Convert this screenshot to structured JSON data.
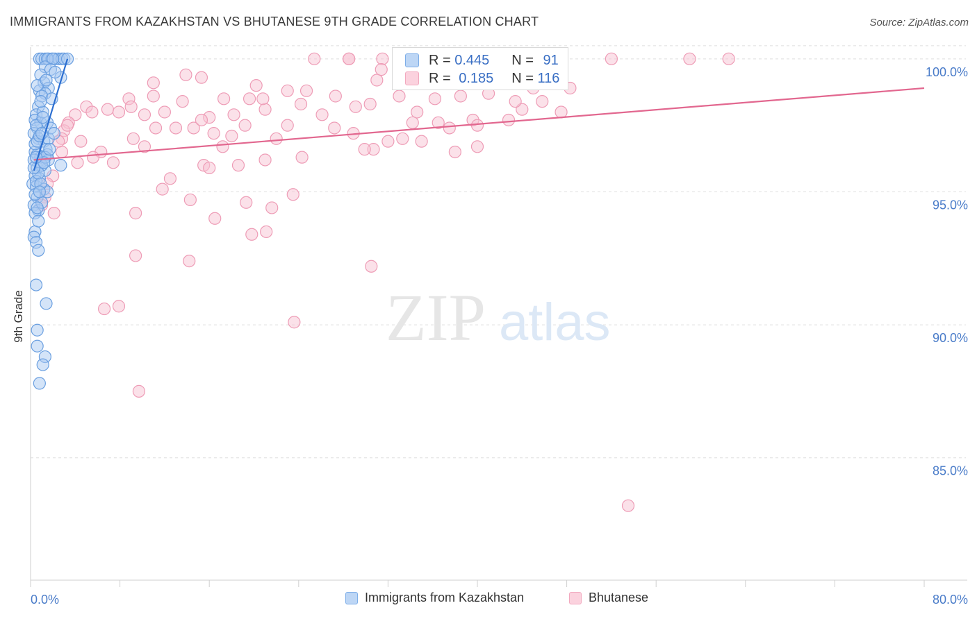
{
  "header": {
    "title": "IMMIGRANTS FROM KAZAKHSTAN VS BHUTANESE 9TH GRADE CORRELATION CHART",
    "source": "Source: ZipAtlas.com"
  },
  "watermark": {
    "zip": "ZIP",
    "atlas": "atlas"
  },
  "stats_box": {
    "rows": [
      {
        "r_label": "R =",
        "r_value": "0.445",
        "n_label": "N =",
        "n_value": "91",
        "color": "#7eaee8"
      },
      {
        "r_label": "R =",
        "r_value": "0.185",
        "n_label": "N =",
        "n_value": "116",
        "color": "#f2a9bf"
      }
    ]
  },
  "legend": {
    "items": [
      {
        "label": "Immigrants from Kazakhstan",
        "color": "#7eaee8"
      },
      {
        "label": "Bhutanese",
        "color": "#f2a9bf"
      }
    ]
  },
  "colors": {
    "blue_fill": "#a9c9f1",
    "blue_stroke": "#6a9fe0",
    "blue_line": "#2c6fd1",
    "pink_fill": "#f7c4d3",
    "pink_stroke": "#ee9cb6",
    "pink_line": "#e2678f",
    "axis_text": "#4a7cc9",
    "grid": "#dedede"
  },
  "chart_data": {
    "type": "scatter",
    "title": "IMMIGRANTS FROM KAZAKHSTAN VS BHUTANESE 9TH GRADE CORRELATION CHART",
    "xlabel": "",
    "ylabel": "9th Grade",
    "xlim": [
      0,
      80
    ],
    "ylim": [
      80.4,
      100.7
    ],
    "x_tick_labels": [
      "0.0%",
      "80.0%"
    ],
    "y_ticks": [
      {
        "value": 100,
        "label": "100.0%"
      },
      {
        "value": 95,
        "label": "95.0%"
      },
      {
        "value": 90,
        "label": "90.0%"
      },
      {
        "value": 85,
        "label": "85.0%"
      }
    ],
    "series": [
      {
        "name": "Immigrants from Kazakhstan",
        "R": 0.445,
        "N": 91,
        "trend": {
          "x": [
            0.3,
            3.3
          ],
          "y": [
            95.8,
            100.0
          ]
        },
        "points": [
          [
            0.8,
            100
          ],
          [
            1.0,
            100
          ],
          [
            1.3,
            100
          ],
          [
            1.6,
            100
          ],
          [
            1.9,
            100
          ],
          [
            2.2,
            100
          ],
          [
            2.5,
            100
          ],
          [
            2.8,
            100
          ],
          [
            3.0,
            100
          ],
          [
            3.3,
            100
          ],
          [
            1.5,
            100
          ],
          [
            2.0,
            100
          ],
          [
            1.3,
            99.7
          ],
          [
            1.8,
            99.6
          ],
          [
            0.9,
            99.4
          ],
          [
            2.7,
            99.3
          ],
          [
            1.2,
            99.1
          ],
          [
            1.6,
            98.9
          ],
          [
            0.8,
            98.8
          ],
          [
            1.3,
            98.7
          ],
          [
            1.0,
            98.6
          ],
          [
            0.7,
            98.2
          ],
          [
            0.5,
            97.9
          ],
          [
            0.4,
            97.7
          ],
          [
            0.9,
            97.6
          ],
          [
            1.5,
            97.6
          ],
          [
            0.6,
            97.4
          ],
          [
            0.3,
            97.2
          ],
          [
            0.7,
            97.0
          ],
          [
            1.2,
            96.9
          ],
          [
            1.6,
            97.0
          ],
          [
            1.4,
            96.6
          ],
          [
            0.4,
            96.5
          ],
          [
            0.6,
            96.4
          ],
          [
            0.9,
            96.3
          ],
          [
            0.3,
            96.2
          ],
          [
            1.5,
            96.4
          ],
          [
            2.7,
            96.0
          ],
          [
            0.6,
            95.9
          ],
          [
            1.3,
            95.8
          ],
          [
            0.4,
            95.6
          ],
          [
            0.8,
            95.5
          ],
          [
            0.2,
            95.3
          ],
          [
            0.5,
            95.2
          ],
          [
            1.2,
            95.1
          ],
          [
            0.6,
            94.8
          ],
          [
            0.3,
            94.5
          ],
          [
            0.7,
            94.3
          ],
          [
            0.4,
            94.2
          ],
          [
            0.4,
            93.5
          ],
          [
            0.3,
            93.3
          ],
          [
            0.5,
            93.1
          ],
          [
            0.7,
            92.8
          ],
          [
            0.5,
            91.5
          ],
          [
            1.4,
            90.8
          ],
          [
            0.6,
            89.8
          ],
          [
            0.6,
            89.2
          ],
          [
            1.3,
            88.8
          ],
          [
            1.1,
            88.5
          ],
          [
            0.8,
            87.8
          ],
          [
            0.6,
            99.0
          ],
          [
            1.1,
            98.0
          ],
          [
            1.8,
            97.4
          ],
          [
            0.9,
            96.1
          ],
          [
            0.5,
            95.4
          ],
          [
            1.0,
            94.6
          ],
          [
            0.7,
            93.9
          ],
          [
            2.2,
            99.5
          ],
          [
            1.6,
            96.2
          ],
          [
            0.4,
            96.8
          ],
          [
            1.0,
            96.0
          ],
          [
            0.6,
            96.9
          ],
          [
            1.5,
            95.0
          ],
          [
            0.7,
            95.7
          ],
          [
            0.5,
            97.5
          ],
          [
            1.9,
            98.5
          ],
          [
            1.1,
            97.8
          ],
          [
            0.8,
            97.1
          ],
          [
            0.3,
            95.9
          ],
          [
            1.3,
            96.3
          ],
          [
            1.7,
            96.6
          ],
          [
            0.9,
            95.3
          ],
          [
            2.1,
            97.2
          ],
          [
            0.6,
            94.4
          ],
          [
            1.4,
            99.2
          ],
          [
            0.9,
            98.4
          ],
          [
            1.0,
            97.2
          ],
          [
            0.4,
            94.9
          ],
          [
            1.2,
            96.1
          ],
          [
            0.5,
            96.3
          ],
          [
            0.8,
            95.0
          ]
        ]
      },
      {
        "name": "Bhutanese",
        "R": 0.185,
        "N": 116,
        "trend": {
          "x": [
            0.3,
            80.0
          ],
          "y": [
            96.2,
            98.9
          ]
        },
        "points": [
          [
            25.4,
            100
          ],
          [
            28.5,
            100
          ],
          [
            31.5,
            100
          ],
          [
            28.5,
            100
          ],
          [
            44.5,
            100
          ],
          [
            52,
            100
          ],
          [
            59,
            100
          ],
          [
            62.5,
            100
          ],
          [
            44.3,
            100
          ],
          [
            13.9,
            99.4
          ],
          [
            15.3,
            99.3
          ],
          [
            11.0,
            99.1
          ],
          [
            31.0,
            99.2
          ],
          [
            45.0,
            98.9
          ],
          [
            23.0,
            98.8
          ],
          [
            27.3,
            98.6
          ],
          [
            17.3,
            98.5
          ],
          [
            11.0,
            98.6
          ],
          [
            19.6,
            98.5
          ],
          [
            13.6,
            98.4
          ],
          [
            8.8,
            98.5
          ],
          [
            5.0,
            98.2
          ],
          [
            5.5,
            98.0
          ],
          [
            6.9,
            98.1
          ],
          [
            9.0,
            98.2
          ],
          [
            4.0,
            97.9
          ],
          [
            10.2,
            97.9
          ],
          [
            12.0,
            98.0
          ],
          [
            16.0,
            97.8
          ],
          [
            18.2,
            97.9
          ],
          [
            21.0,
            98.1
          ],
          [
            24.2,
            98.3
          ],
          [
            30.4,
            98.3
          ],
          [
            33.0,
            98.6
          ],
          [
            36.2,
            98.5
          ],
          [
            38.5,
            98.6
          ],
          [
            41.0,
            98.7
          ],
          [
            44.0,
            98.1
          ],
          [
            34.6,
            98.0
          ],
          [
            39.6,
            97.7
          ],
          [
            40.0,
            97.5
          ],
          [
            37.5,
            97.4
          ],
          [
            23.0,
            97.5
          ],
          [
            27.2,
            97.4
          ],
          [
            19.2,
            97.5
          ],
          [
            14.6,
            97.4
          ],
          [
            15.3,
            97.7
          ],
          [
            11.2,
            97.4
          ],
          [
            9.2,
            97.0
          ],
          [
            3.4,
            97.6
          ],
          [
            3.0,
            97.3
          ],
          [
            2.8,
            97.0
          ],
          [
            4.5,
            96.9
          ],
          [
            6.3,
            96.5
          ],
          [
            10.2,
            96.7
          ],
          [
            17.2,
            96.7
          ],
          [
            16.4,
            97.2
          ],
          [
            22.0,
            97.0
          ],
          [
            30.7,
            96.6
          ],
          [
            29.9,
            96.6
          ],
          [
            32.0,
            96.9
          ],
          [
            33.3,
            97.0
          ],
          [
            35.0,
            96.9
          ],
          [
            38.0,
            96.5
          ],
          [
            40.0,
            96.7
          ],
          [
            2.8,
            96.5
          ],
          [
            4.2,
            96.1
          ],
          [
            7.4,
            96.1
          ],
          [
            15.5,
            96.0
          ],
          [
            16.0,
            95.9
          ],
          [
            18.6,
            96.0
          ],
          [
            21.0,
            96.2
          ],
          [
            24.3,
            96.3
          ],
          [
            12.5,
            95.5
          ],
          [
            11.8,
            95.1
          ],
          [
            14.3,
            94.7
          ],
          [
            9.4,
            94.2
          ],
          [
            16.5,
            94.0
          ],
          [
            19.3,
            94.6
          ],
          [
            21.6,
            94.4
          ],
          [
            23.5,
            94.9
          ],
          [
            2.0,
            95.6
          ],
          [
            1.5,
            95.3
          ],
          [
            1.3,
            94.8
          ],
          [
            2.1,
            94.2
          ],
          [
            1.0,
            94.5
          ],
          [
            19.8,
            93.4
          ],
          [
            21.1,
            93.5
          ],
          [
            9.4,
            92.6
          ],
          [
            14.2,
            92.4
          ],
          [
            30.5,
            92.2
          ],
          [
            6.6,
            90.6
          ],
          [
            7.9,
            90.7
          ],
          [
            23.6,
            90.1
          ],
          [
            9.7,
            87.5
          ],
          [
            53.5,
            83.2
          ],
          [
            3.3,
            97.5
          ],
          [
            5.6,
            96.3
          ],
          [
            20.2,
            99.0
          ],
          [
            26.1,
            97.9
          ],
          [
            47.5,
            98.0
          ],
          [
            43.4,
            98.4
          ],
          [
            36.5,
            97.6
          ],
          [
            7.9,
            98.0
          ],
          [
            13.0,
            97.4
          ],
          [
            18.0,
            97.1
          ],
          [
            28.9,
            97.2
          ],
          [
            34.2,
            97.6
          ],
          [
            2.5,
            96.9
          ],
          [
            24.7,
            98.8
          ],
          [
            42.8,
            97.7
          ],
          [
            48.3,
            98.9
          ],
          [
            31.4,
            99.6
          ],
          [
            20.8,
            98.5
          ],
          [
            45.8,
            98.4
          ],
          [
            29.1,
            98.2
          ]
        ]
      }
    ]
  }
}
